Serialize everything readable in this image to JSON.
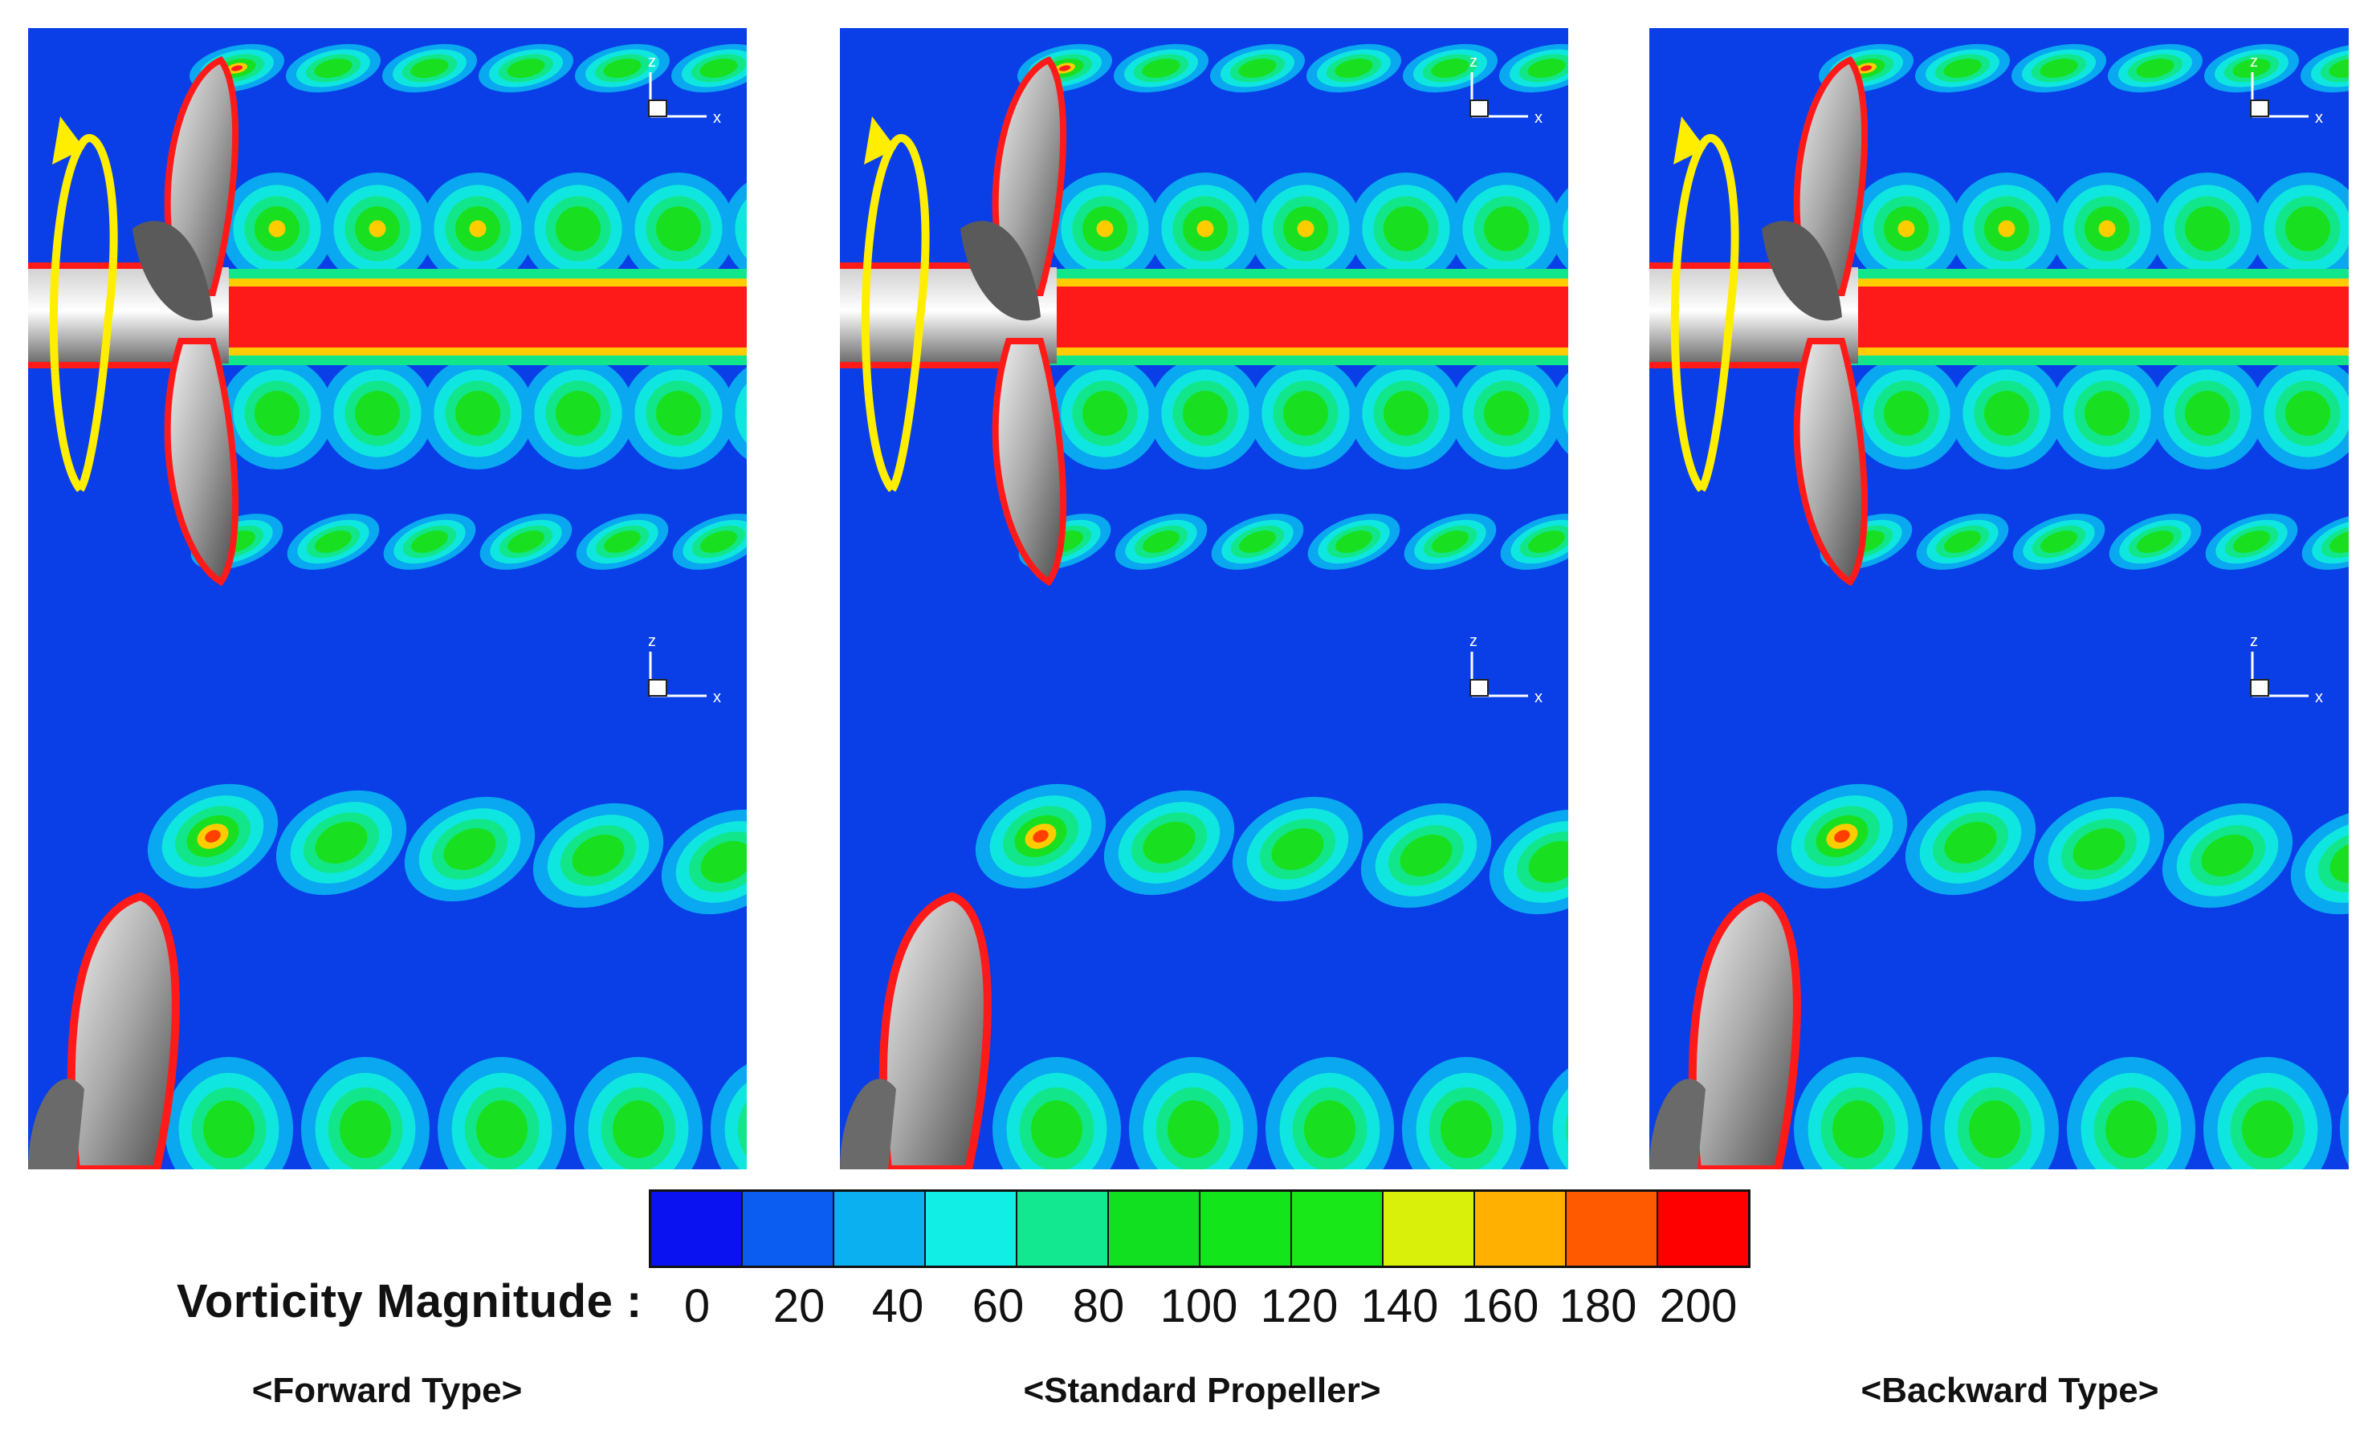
{
  "panels": [
    {
      "name": "forward-type",
      "caption": "<Forward Type>"
    },
    {
      "name": "standard-propeller",
      "caption": "<Standard Propeller>"
    },
    {
      "name": "backward-type",
      "caption": "<Backward Type>"
    }
  ],
  "axis_labels": {
    "z": "z",
    "x": "x"
  },
  "legend": {
    "title": "Vorticity Magnitude :",
    "ticks": [
      "0",
      "20",
      "40",
      "60",
      "80",
      "100",
      "120",
      "140",
      "160",
      "180",
      "200"
    ],
    "colors": [
      "#0b12f2",
      "#0b5cf0",
      "#0ab0f0",
      "#10eee6",
      "#12e890",
      "#10e020",
      "#12e61a",
      "#18e818",
      "#d8f00a",
      "#ffb000",
      "#ff5a00",
      "#ff0000"
    ]
  },
  "colors": {
    "background_flow": "#0a3fe8",
    "wake_core": "#ff1a1a",
    "rotation_arrow": "#ffee00"
  }
}
